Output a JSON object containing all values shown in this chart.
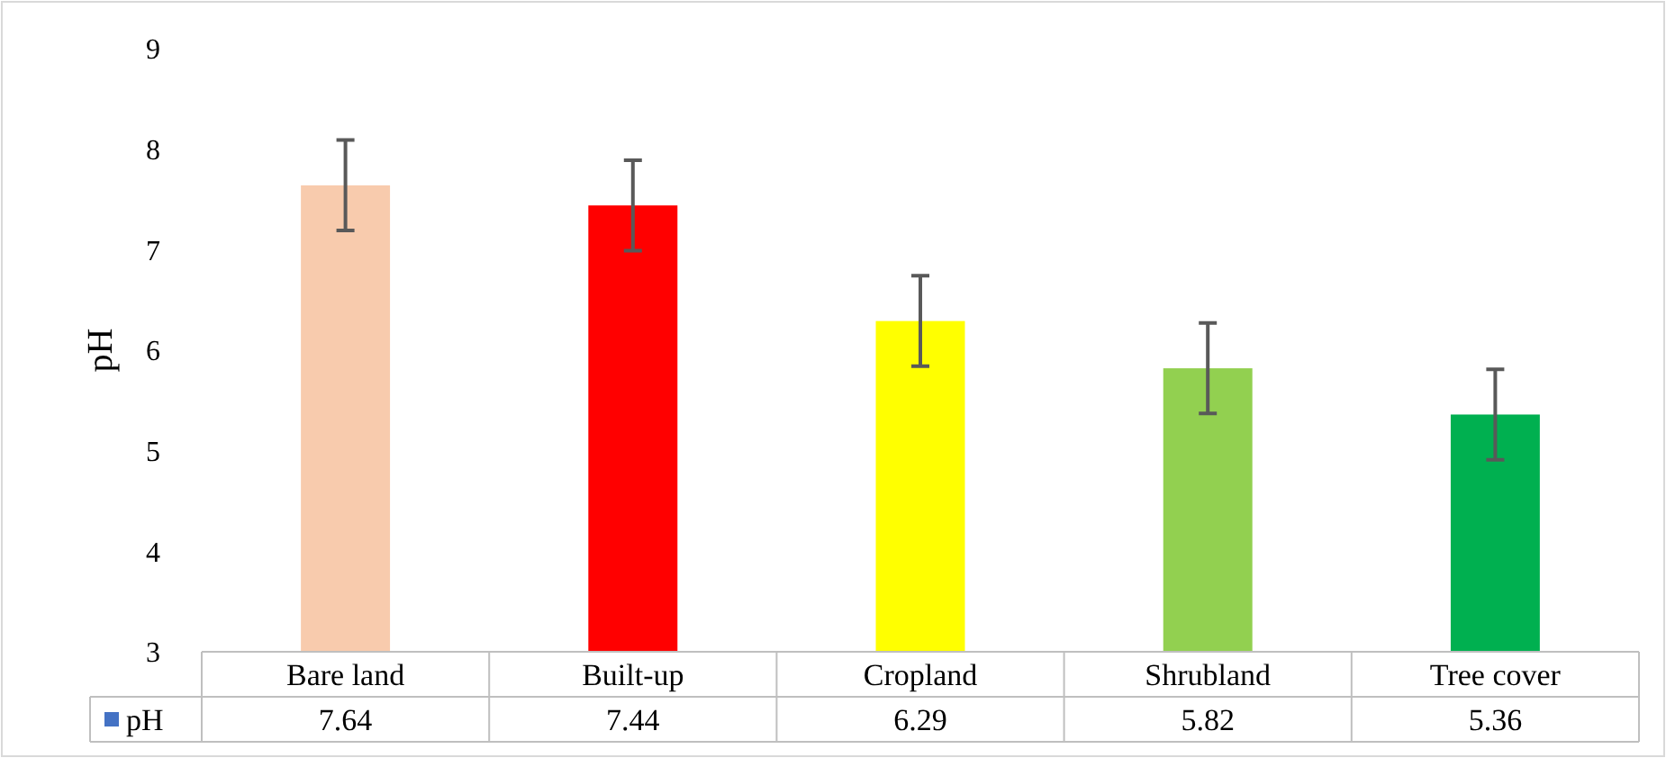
{
  "chart_data": {
    "type": "bar",
    "ylabel": "pH",
    "categories": [
      "Bare land",
      "Built-up",
      "Cropland",
      "Shrubland",
      "Tree cover"
    ],
    "series": [
      {
        "name": "pH",
        "color": "#4472c4",
        "colors": [
          "#f8cbad",
          "#ff0000",
          "#ffff00",
          "#92d050",
          "#00b050"
        ],
        "values": [
          7.64,
          7.44,
          6.29,
          5.82,
          5.36
        ],
        "errors": [
          0.45,
          0.45,
          0.45,
          0.45,
          0.45
        ]
      }
    ],
    "ylim": [
      3,
      9
    ],
    "yticks": [
      3,
      4,
      5,
      6,
      7,
      8,
      9
    ],
    "data_labels": true,
    "legend": "bottom"
  }
}
